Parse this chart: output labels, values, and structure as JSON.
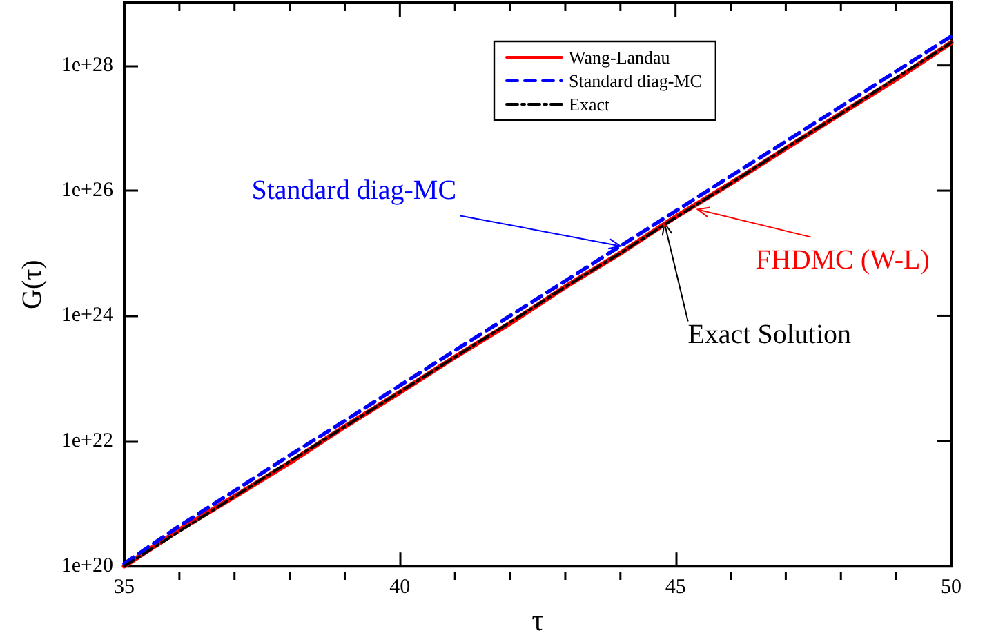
{
  "chart_data": {
    "type": "line",
    "xlabel": "τ",
    "ylabel": "G(τ)",
    "log": "y",
    "x": [
      35,
      36,
      37,
      38,
      39,
      40,
      41,
      42,
      43,
      44,
      45,
      46,
      47,
      48,
      49,
      50
    ],
    "series": [
      {
        "name": "Wang-Landau",
        "color": "#ff0000",
        "line_style": "solid",
        "values": [
          1e+20,
          3.8e+20,
          1.3e+21,
          4.5e+21,
          1.7e+22,
          6e+22,
          2.2e+23,
          7.6e+23,
          2.9e+24,
          1e+25,
          3.8e+25,
          1.3e+26,
          4.7e+26,
          1.7e+27,
          6e+27,
          2.3e+28
        ]
      },
      {
        "name": "Standard diag-MC",
        "color": "#0000ff",
        "line_style": "dashed",
        "values": [
          1.1e+20,
          4.4e+20,
          1.6e+21,
          5.9e+21,
          2.1e+22,
          7.7e+22,
          2.8e+23,
          1e+24,
          3.6e+24,
          1.3e+25,
          4.7e+25,
          1.7e+26,
          6.1e+26,
          2.2e+27,
          8e+27,
          2.9e+28
        ]
      },
      {
        "name": "Exact",
        "color": "#000000",
        "line_style": "dashdot",
        "values": [
          1e+20,
          3.6e+20,
          1.3e+21,
          4.7e+21,
          1.7e+22,
          6.1e+22,
          2.2e+23,
          7.9e+23,
          2.9e+24,
          1e+25,
          3.7e+25,
          1.3e+26,
          4.8e+26,
          1.7e+27,
          6.3e+27,
          2.3e+28
        ]
      }
    ],
    "annotations": [
      {
        "text": "Standard diag-MC",
        "x": 44,
        "y": 1.3e+25
      },
      {
        "text": "FHDMC (W-L)",
        "x": 45.4,
        "y": 5e+25
      },
      {
        "text": "Exact Solution",
        "x": 44.8,
        "y": 3e+25
      }
    ],
    "xlim": [
      35,
      50
    ],
    "xticks": [
      35,
      {
        "value": 36,
        "label": null
      },
      {
        "value": 37,
        "label": null
      },
      {
        "value": 38,
        "label": null
      },
      {
        "value": 39,
        "label": null
      },
      40,
      {
        "value": 41,
        "label": null
      },
      {
        "value": 42,
        "label": null
      },
      {
        "value": 43,
        "label": null
      },
      {
        "value": 44,
        "label": null
      },
      45,
      {
        "value": 46,
        "label": null
      },
      {
        "value": 47,
        "label": null
      },
      {
        "value": 48,
        "label": null
      },
      {
        "value": 49,
        "label": null
      },
      50
    ],
    "ylim": [
      1e+20,
      1e+29
    ],
    "yticks": [
      {
        "value": 1e+20,
        "label": "1e+20"
      },
      {
        "value": 1e+22,
        "label": "1e+22"
      },
      {
        "value": 1e+24,
        "label": "1e+24"
      },
      {
        "value": 1e+26,
        "label": "1e+26"
      },
      {
        "value": 1e+28,
        "label": "1e+28"
      }
    ],
    "grid": false,
    "legend": "top right",
    "marker": "none"
  }
}
